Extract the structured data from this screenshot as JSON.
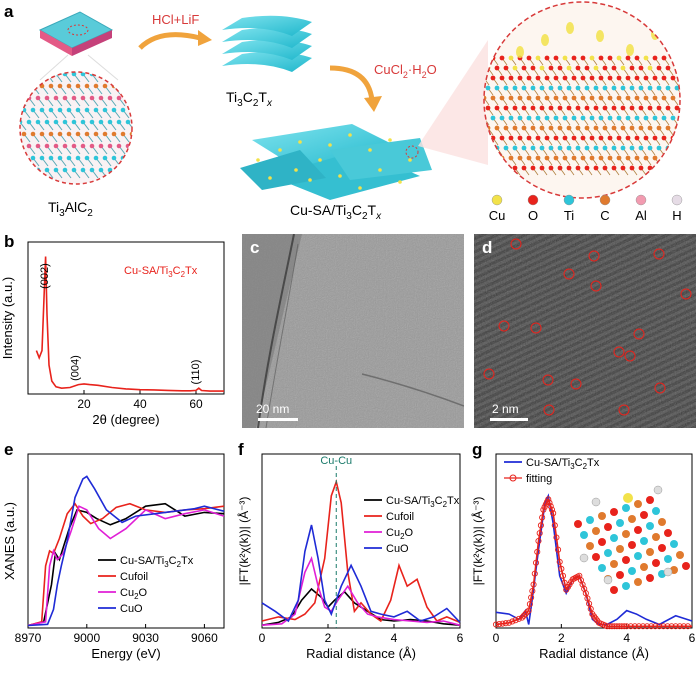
{
  "panels": {
    "a": "a",
    "b": "b",
    "c": "c",
    "d": "d",
    "e": "e",
    "f": "f",
    "g": "g"
  },
  "schematic": {
    "step1": "HCl+LiF",
    "step2_pre": "CuCl",
    "step2_sub": "2",
    "step2_post": "·H",
    "step2_sub2": "2",
    "step2_end": "O",
    "ti3alc2": {
      "t1": "Ti",
      "s1": "3",
      "t2": "AlC",
      "s2": "2"
    },
    "ti3c2tx": {
      "t1": "Ti",
      "s1": "3",
      "t2": "C",
      "s2": "2",
      "t3": "T",
      "s3": "x"
    },
    "cusa": {
      "t1": "Cu-SA/Ti",
      "s1": "3",
      "t2": "C",
      "s2": "2",
      "t3": "T",
      "s3": "x"
    },
    "legend": [
      {
        "label": "Cu",
        "color": "#f2e24a"
      },
      {
        "label": "O",
        "color": "#e8231c"
      },
      {
        "label": "Ti",
        "color": "#2ec5d9"
      },
      {
        "label": "C",
        "color": "#e07a2e"
      },
      {
        "label": "Al",
        "color": "#f29bb0"
      },
      {
        "label": "H",
        "color": "#e6dce6"
      }
    ]
  },
  "images": {
    "c_scale": "20 nm",
    "d_scale": "2 nm"
  },
  "chart_data": [
    {
      "panel": "b",
      "type": "line",
      "legend": "Cu-SA/Ti3C2Tx",
      "xlabel": "2θ (degree)",
      "ylabel": "Intensity (a.u.)",
      "xlim": [
        0,
        70
      ],
      "xticks": [
        20,
        40,
        60
      ],
      "peaks": [
        {
          "label": "(002)",
          "x": 6.5
        },
        {
          "label": "(004)",
          "x": 18
        },
        {
          "label": "(110)",
          "x": 61
        }
      ],
      "color": "#e8231c",
      "series": [
        {
          "x": [
            3,
            4,
            5,
            5.8,
            6.3,
            6.8,
            7.5,
            8.5,
            10,
            12,
            15,
            18,
            20,
            22,
            25,
            30,
            35,
            40,
            45,
            50,
            55,
            58,
            60,
            61,
            62,
            65,
            70
          ],
          "y": [
            0.3,
            0.25,
            0.3,
            0.7,
            0.95,
            0.55,
            0.2,
            0.09,
            0.05,
            0.04,
            0.045,
            0.065,
            0.07,
            0.065,
            0.06,
            0.045,
            0.035,
            0.03,
            0.028,
            0.025,
            0.022,
            0.022,
            0.025,
            0.04,
            0.024,
            0.02,
            0.02
          ]
        }
      ]
    },
    {
      "panel": "e",
      "type": "line",
      "xlabel": "Energy (eV)",
      "ylabel": "XANES (a.u.)",
      "xlim": [
        8970,
        9070
      ],
      "xticks": [
        8970,
        9000,
        9030,
        9060
      ],
      "series": [
        {
          "name": "Cu-SA/Ti3C2Tx",
          "color": "#000000",
          "x": [
            8970,
            8978,
            8982,
            8984,
            8986,
            8988,
            8991,
            8995,
            9000,
            9005,
            9012,
            9020,
            9030,
            9040,
            9050,
            9060,
            9070
          ],
          "y": [
            0.02,
            0.05,
            0.35,
            0.6,
            0.55,
            0.65,
            0.8,
            0.95,
            0.93,
            0.88,
            0.83,
            0.88,
            0.98,
            1.0,
            0.9,
            0.93,
            0.92
          ]
        },
        {
          "name": "Cu foil",
          "color": "#e8231c",
          "x": [
            8970,
            8977,
            8979,
            8981,
            8983,
            8986,
            8990,
            8994,
            8998,
            9002,
            9008,
            9015,
            9022,
            9030,
            9040,
            9050,
            9060,
            9070
          ],
          "y": [
            0.02,
            0.05,
            0.5,
            0.62,
            0.6,
            0.72,
            0.92,
            1.0,
            0.9,
            0.84,
            0.88,
            0.97,
            1.0,
            0.95,
            0.93,
            0.95,
            0.96,
            0.98
          ]
        },
        {
          "name": "Cu2O",
          "color": "#e01fd6",
          "x": [
            8970,
            8979,
            8981,
            8983,
            8985,
            8988,
            8992,
            8996,
            9000,
            9006,
            9012,
            9020,
            9030,
            9040,
            9050,
            9060,
            9070
          ],
          "y": [
            0.02,
            0.05,
            0.5,
            0.62,
            0.55,
            0.6,
            0.78,
            0.98,
            0.95,
            0.8,
            0.72,
            0.8,
            0.95,
            0.88,
            0.92,
            0.95,
            0.9
          ]
        },
        {
          "name": "CuO",
          "color": "#1f2bd6",
          "x": [
            8970,
            8980,
            8983,
            8985,
            8987,
            8990,
            8994,
            8998,
            9000,
            9004,
            9010,
            9018,
            9025,
            9035,
            9045,
            9055,
            9060,
            9070
          ],
          "y": [
            0.02,
            0.03,
            0.15,
            0.35,
            0.5,
            0.7,
            1.05,
            1.2,
            1.22,
            1.12,
            0.95,
            0.85,
            0.9,
            0.92,
            0.94,
            0.96,
            0.98,
            0.94
          ]
        }
      ]
    },
    {
      "panel": "f",
      "type": "line",
      "xlabel": "Radial distance (Å)",
      "ylabel": "|FT(k²χ(k))| (Å⁻³)",
      "xlim": [
        0,
        6
      ],
      "xticks": [
        0,
        2,
        4,
        6
      ],
      "annotation": {
        "label": "Cu-Cu",
        "x": 2.25
      },
      "series": [
        {
          "name": "Cu-SA/Ti3C2Tx",
          "color": "#000000",
          "x": [
            0,
            0.5,
            0.9,
            1.2,
            1.5,
            1.8,
            2.0,
            2.2,
            2.5,
            2.8,
            3.2,
            3.6,
            4.0,
            4.5,
            5.0,
            5.5,
            6.0
          ],
          "y": [
            0.02,
            0.04,
            0.08,
            0.2,
            0.28,
            0.22,
            0.15,
            0.2,
            0.26,
            0.18,
            0.12,
            0.06,
            0.05,
            0.06,
            0.05,
            0.03,
            0.02
          ]
        },
        {
          "name": "Cu foil",
          "color": "#e8231c",
          "x": [
            0,
            0.5,
            1.0,
            1.3,
            1.6,
            1.9,
            2.1,
            2.25,
            2.4,
            2.6,
            2.8,
            3.0,
            3.3,
            3.6,
            3.9,
            4.15,
            4.4,
            4.7,
            5.0,
            5.3,
            5.6,
            6.0
          ],
          "y": [
            0.05,
            0.08,
            0.06,
            0.1,
            0.18,
            0.5,
            0.95,
            1.05,
            0.9,
            0.4,
            0.12,
            0.18,
            0.1,
            0.05,
            0.2,
            0.45,
            0.3,
            0.35,
            0.15,
            0.05,
            0.08,
            0.04
          ]
        },
        {
          "name": "Cu2O",
          "color": "#e01fd6",
          "x": [
            0,
            0.6,
            1.0,
            1.3,
            1.5,
            1.7,
            1.9,
            2.1,
            2.3,
            2.6,
            2.9,
            3.2,
            3.5,
            4.0,
            4.5,
            5.0,
            5.5,
            6.0
          ],
          "y": [
            0.02,
            0.03,
            0.1,
            0.4,
            0.5,
            0.3,
            0.15,
            0.12,
            0.2,
            0.3,
            0.18,
            0.1,
            0.08,
            0.06,
            0.05,
            0.04,
            0.05,
            0.02
          ]
        },
        {
          "name": "CuO",
          "color": "#1f2bd6",
          "x": [
            0,
            0.4,
            0.8,
            1.1,
            1.3,
            1.5,
            1.7,
            1.9,
            2.1,
            2.4,
            2.7,
            3.0,
            3.3,
            3.6,
            4.0,
            4.4,
            4.8,
            5.2,
            5.6,
            6.0
          ],
          "y": [
            0.18,
            0.12,
            0.05,
            0.2,
            0.55,
            0.74,
            0.5,
            0.2,
            0.1,
            0.3,
            0.45,
            0.3,
            0.12,
            0.1,
            0.08,
            0.12,
            0.05,
            0.08,
            0.14,
            0.04
          ]
        }
      ]
    },
    {
      "panel": "g",
      "type": "line",
      "xlabel": "Radial distance (Å)",
      "ylabel": "|FT(k²χ(k))| (Å⁻³)",
      "xlim": [
        0,
        6
      ],
      "xticks": [
        0,
        2,
        4,
        6
      ],
      "series": [
        {
          "name": "Cu-SA/Ti3C2Tx",
          "color": "#1f2bd6",
          "x": [
            0,
            0.4,
            0.7,
            0.9,
            1.0,
            1.1,
            1.3,
            1.5,
            1.6,
            1.75,
            1.95,
            2.15,
            2.35,
            2.55,
            2.75,
            2.95,
            3.15,
            3.4,
            3.7,
            4.0,
            4.3,
            4.6,
            5.0,
            5.5,
            6.0
          ],
          "y": [
            0.09,
            0.08,
            0.05,
            0.1,
            0.02,
            0.15,
            0.45,
            0.72,
            0.76,
            0.6,
            0.3,
            0.2,
            0.28,
            0.3,
            0.2,
            0.05,
            0.02,
            0.02,
            0.05,
            0.1,
            0.08,
            0.05,
            0.02,
            0.07,
            0.04
          ]
        },
        {
          "name": "fitting",
          "color": "#e8231c",
          "marker": "circle",
          "x": [
            0,
            0.4,
            0.8,
            1.0,
            1.15,
            1.3,
            1.45,
            1.6,
            1.75,
            1.95,
            2.15,
            2.35,
            2.55,
            2.75,
            2.95,
            3.15,
            3.4,
            3.7,
            4.0,
            4.5,
            5.0,
            5.5,
            6.0
          ],
          "y": [
            0.02,
            0.03,
            0.06,
            0.1,
            0.25,
            0.5,
            0.68,
            0.74,
            0.66,
            0.38,
            0.22,
            0.28,
            0.3,
            0.2,
            0.08,
            0.03,
            0.01,
            0.01,
            0.01,
            0.01,
            0.01,
            0.01,
            0.01
          ]
        }
      ]
    }
  ]
}
